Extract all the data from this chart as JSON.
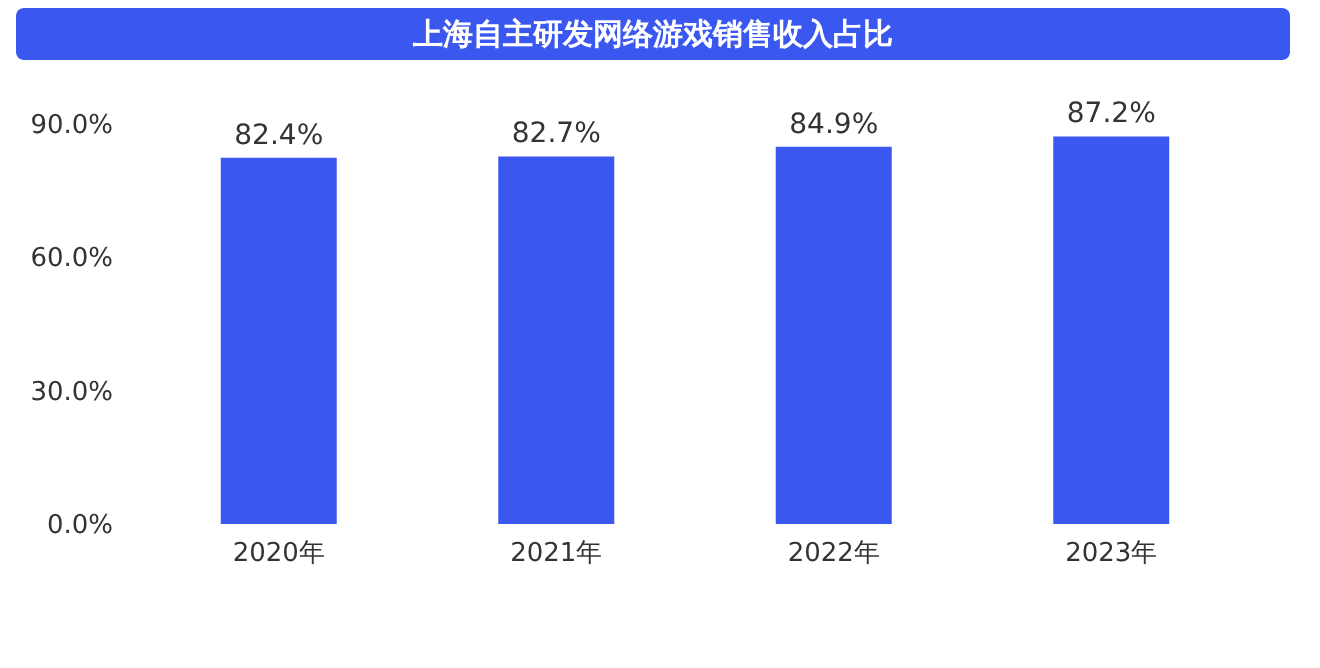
{
  "chart_data": {
    "type": "bar",
    "title": "上海自主研发网络游戏销售收入占比",
    "categories": [
      "2020年",
      "2021年",
      "2022年",
      "2023年"
    ],
    "values": [
      82.4,
      82.7,
      84.9,
      87.2
    ],
    "color": "#3a57f0",
    "value_labels": [
      "82.4%",
      "82.7%",
      "84.9%",
      "87.2%"
    ],
    "ylim": [
      0,
      90
    ],
    "yticks": [
      {
        "value": 0,
        "label": "0.0%"
      },
      {
        "value": 30,
        "label": "30.0%"
      },
      {
        "value": 60,
        "label": "60.0%"
      },
      {
        "value": 90,
        "label": "90.0%"
      }
    ],
    "grid": false
  }
}
